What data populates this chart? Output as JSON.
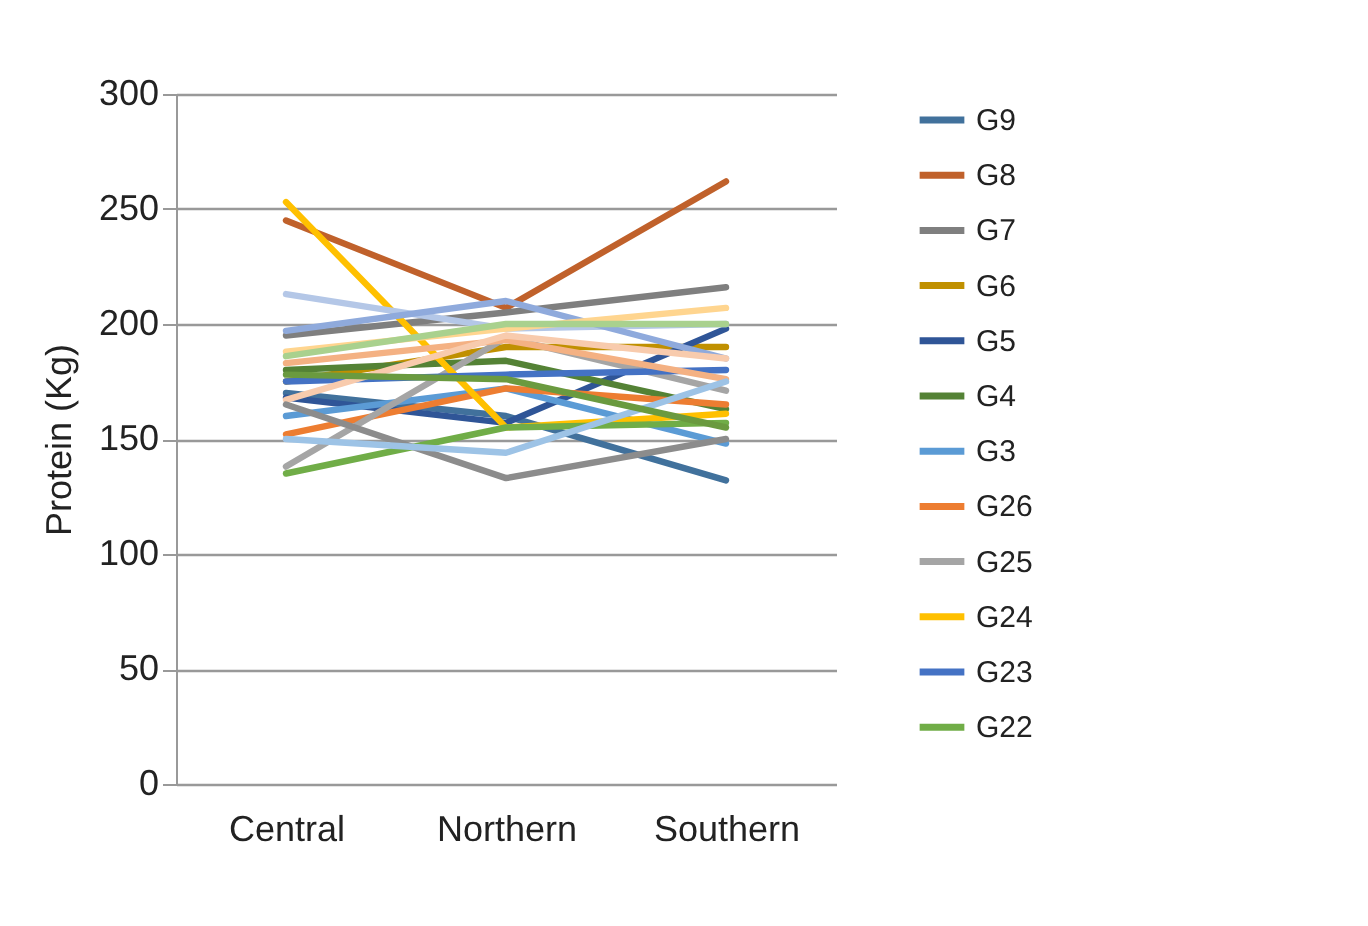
{
  "chart_data": {
    "type": "line",
    "ylabel": "Protein (Kg)",
    "categories": [
      "Central",
      "Northern",
      "Southern"
    ],
    "ylim": [
      0,
      300
    ],
    "yticks": [
      0,
      50,
      100,
      150,
      200,
      250,
      300
    ],
    "grid": "y",
    "legend": "right",
    "series": [
      {
        "name": "G9",
        "color": "#41719c",
        "values": [
          170,
          160,
          132
        ]
      },
      {
        "name": "G8",
        "color": "#c0612b",
        "values": [
          245,
          207,
          262
        ]
      },
      {
        "name": "G7",
        "color": "#7f7f7f",
        "values": [
          195,
          205,
          216
        ]
      },
      {
        "name": "G6",
        "color": "#c09000",
        "values": [
          175,
          190,
          190
        ]
      },
      {
        "name": "G5",
        "color": "#2f5597",
        "values": [
          168,
          157,
          198
        ]
      },
      {
        "name": "G4",
        "color": "#548235",
        "values": [
          180,
          184,
          163
        ]
      },
      {
        "name": "G3",
        "color": "#5b9bd5",
        "values": [
          160,
          172,
          148
        ]
      },
      {
        "name": "G26",
        "color": "#ed7d31",
        "values": [
          152,
          172,
          165
        ]
      },
      {
        "name": "G25",
        "color": "#a5a5a5",
        "values": [
          138,
          194,
          171
        ]
      },
      {
        "name": "G24",
        "color": "#ffc000",
        "values": [
          253,
          155,
          161
        ]
      },
      {
        "name": "G23",
        "color": "#4472c4",
        "values": [
          175,
          178,
          180
        ]
      },
      {
        "name": "G22",
        "color": "#70ad47",
        "values": [
          135,
          155,
          157
        ]
      },
      {
        "color": "#b4c7e7",
        "values": [
          213,
          198,
          200
        ]
      },
      {
        "color": "#8faadc",
        "values": [
          197,
          210,
          185
        ]
      },
      {
        "color": "#ffd58f",
        "values": [
          188,
          198,
          207
        ]
      },
      {
        "color": "#a9d18e",
        "values": [
          186,
          200,
          200
        ]
      },
      {
        "color": "#f4b183",
        "values": [
          183,
          193,
          176
        ]
      },
      {
        "color": "#f8cbad",
        "values": [
          167,
          195,
          185
        ]
      },
      {
        "color": "#8c8c8c",
        "values": [
          165,
          133,
          150
        ]
      },
      {
        "color": "#9dc3e6",
        "values": [
          150,
          144,
          175
        ]
      },
      {
        "color": "#6a9a3f",
        "values": [
          178,
          176,
          155
        ]
      }
    ]
  }
}
